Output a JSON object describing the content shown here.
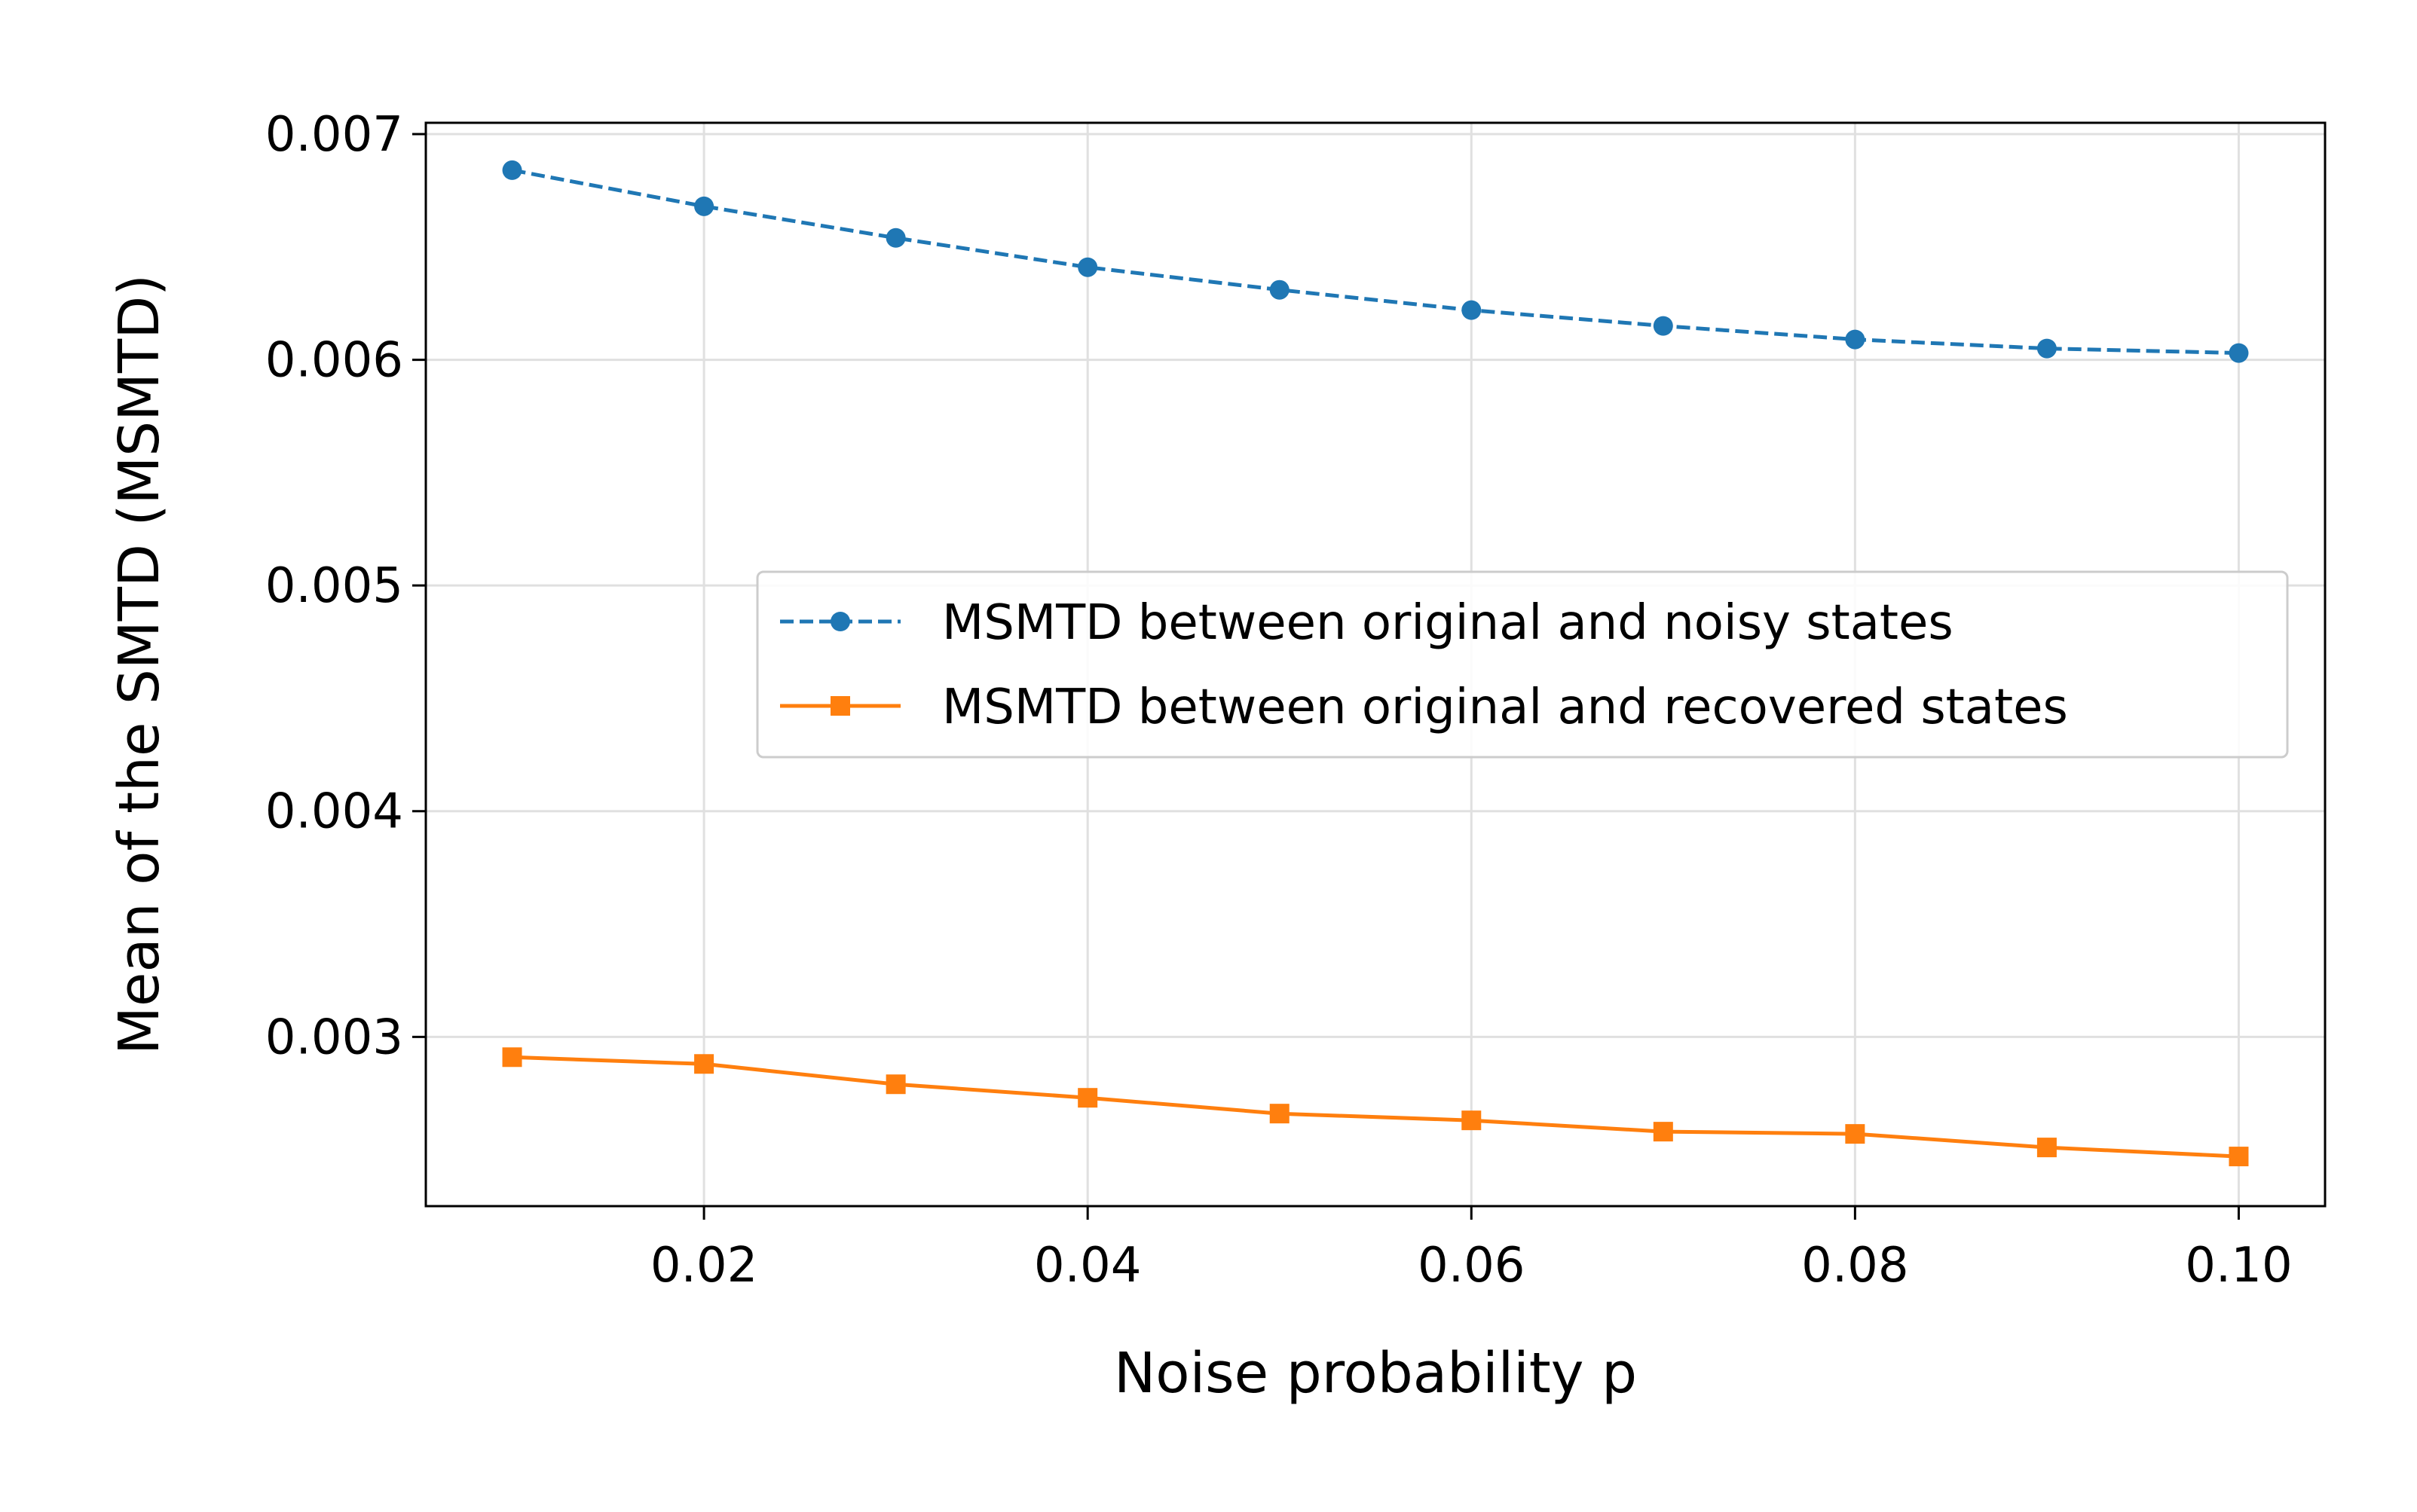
{
  "chart_data": {
    "type": "line",
    "title": "",
    "xlabel": "Noise probability p",
    "ylabel": "Mean of the SMTD (MSMTD)",
    "xlim": [
      0.0055,
      0.1045
    ],
    "ylim": [
      0.00225,
      0.00705
    ],
    "xticks": [
      0.02,
      0.04,
      0.06,
      0.08,
      0.1
    ],
    "xtick_labels": [
      "0.02",
      "0.04",
      "0.06",
      "0.08",
      "0.10"
    ],
    "yticks": [
      0.003,
      0.004,
      0.005,
      0.006,
      0.007
    ],
    "ytick_labels": [
      "0.003",
      "0.004",
      "0.005",
      "0.006",
      "0.007"
    ],
    "grid": true,
    "legend_position": "center-right",
    "x": [
      0.01,
      0.02,
      0.03,
      0.04,
      0.05,
      0.06,
      0.07,
      0.08,
      0.09,
      0.1
    ],
    "series": [
      {
        "name": "MSMTD between original and noisy states",
        "color": "#1f77b4",
        "line_style": "dashed",
        "marker": "circle",
        "values": [
          0.00684,
          0.00668,
          0.00654,
          0.00641,
          0.00631,
          0.00622,
          0.00615,
          0.00609,
          0.00605,
          0.00603
        ]
      },
      {
        "name": "MSMTD between original and recovered states",
        "color": "#ff7f0e",
        "line_style": "solid",
        "marker": "square",
        "values": [
          0.00291,
          0.00288,
          0.00279,
          0.00273,
          0.00266,
          0.00263,
          0.00258,
          0.00257,
          0.00251,
          0.00247
        ]
      }
    ]
  }
}
